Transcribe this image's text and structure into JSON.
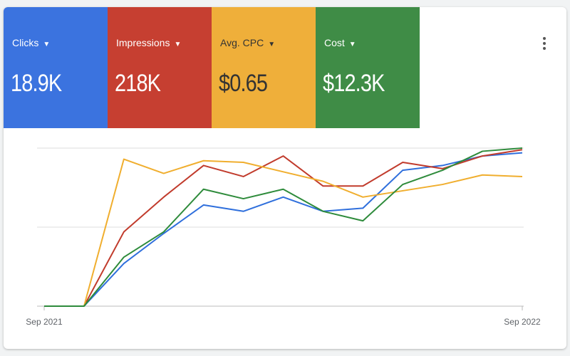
{
  "cards": [
    {
      "label": "Clicks",
      "value": "18.9K",
      "color": "#3b73df"
    },
    {
      "label": "Impressions",
      "value": "218K",
      "color": "#c63f31"
    },
    {
      "label": "Avg. CPC",
      "value": "$0.65",
      "color": "#efaf3a"
    },
    {
      "label": "Cost",
      "value": "$12.3K",
      "color": "#3f8c46"
    }
  ],
  "chart_data": {
    "type": "line",
    "categories": [
      "Sep 2021",
      null,
      null,
      null,
      null,
      null,
      null,
      null,
      null,
      null,
      null,
      null,
      "Sep 2022"
    ],
    "series": [
      {
        "name": "Clicks",
        "color": "#2f6fdc",
        "values": [
          0,
          0,
          27,
          46,
          64,
          60,
          69,
          60,
          62,
          86,
          89,
          95,
          97
        ]
      },
      {
        "name": "Impressions",
        "color": "#c13b2c",
        "values": [
          0,
          0,
          47,
          69,
          89,
          82,
          95,
          76,
          76,
          91,
          87,
          95,
          99
        ]
      },
      {
        "name": "Avg. CPC",
        "color": "#f0ae2e",
        "values": [
          0,
          0,
          93,
          84,
          92,
          91,
          85,
          79,
          69,
          73,
          77,
          83,
          82
        ]
      },
      {
        "name": "Cost",
        "color": "#2e8b3b",
        "values": [
          0,
          0,
          31,
          47,
          74,
          68,
          74,
          60,
          54,
          77,
          86,
          98,
          100
        ]
      }
    ],
    "ylim": [
      0,
      100
    ],
    "yticks": [
      0,
      50,
      100
    ],
    "grid": true
  }
}
